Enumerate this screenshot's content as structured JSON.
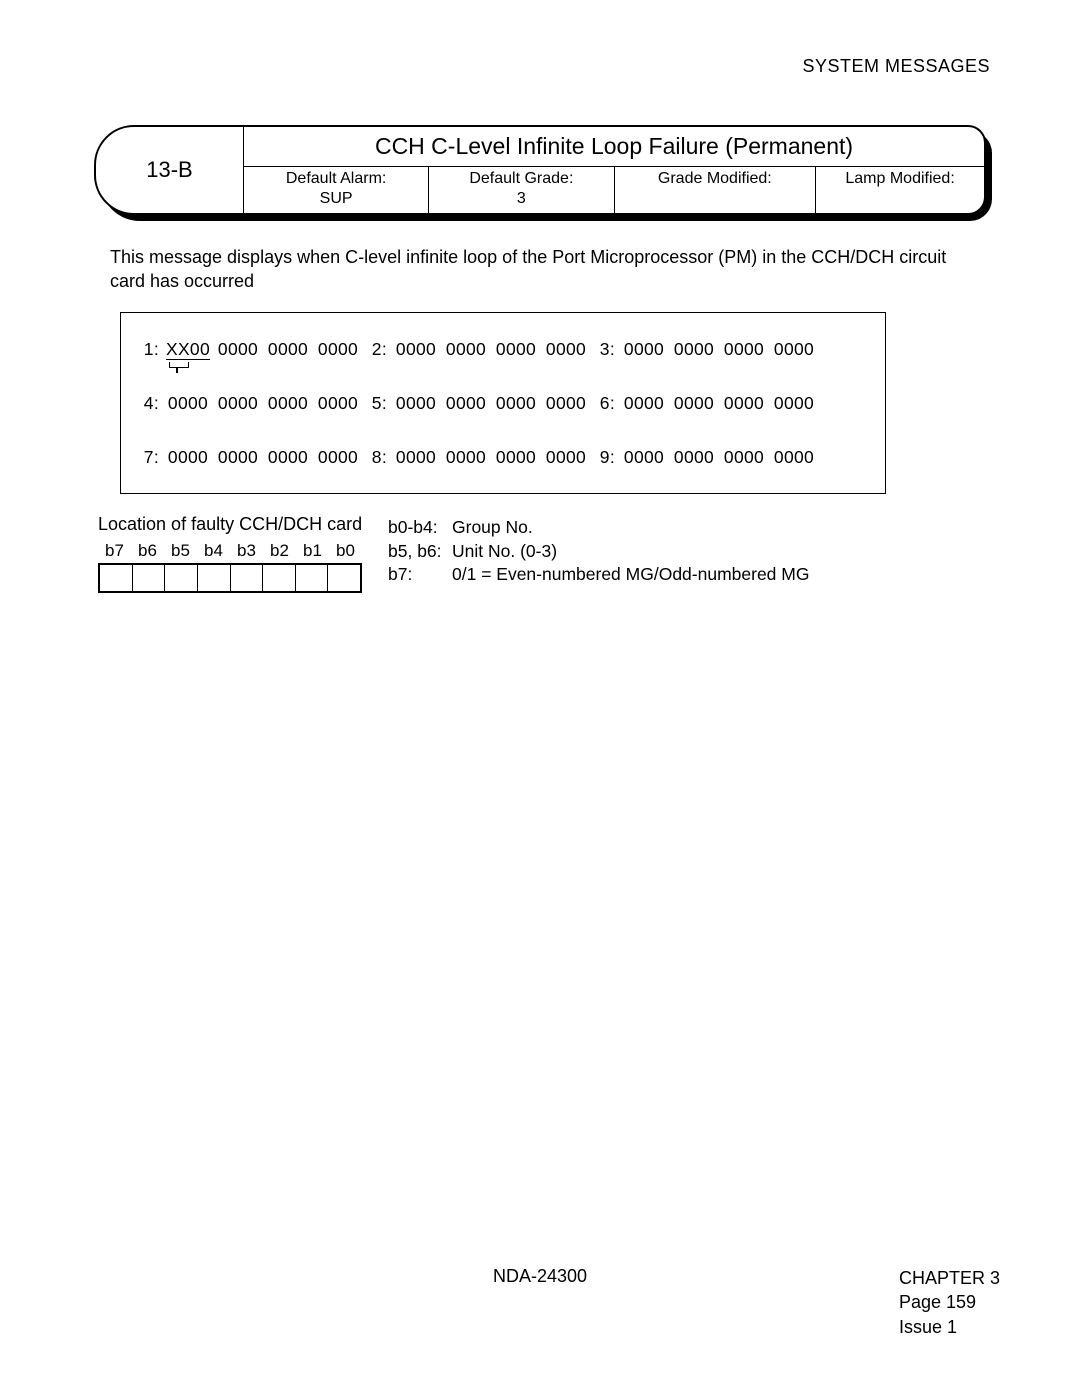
{
  "header": {
    "section": "SYSTEM MESSAGES"
  },
  "titlebox": {
    "code": "13-B",
    "title": "CCH C-Level Infinite Loop Failure (Permanent)",
    "cells": [
      {
        "label": "Default Alarm:",
        "value": "SUP"
      },
      {
        "label": "Default Grade:",
        "value": "3"
      },
      {
        "label": "Grade Modified:",
        "value": ""
      },
      {
        "label": "Lamp Modified:",
        "value": ""
      }
    ]
  },
  "description": "This message displays when C-level infinite loop of the Port Microprocessor (PM) in the CCH/DCH circuit card has occurred",
  "data_block": {
    "rows": [
      [
        {
          "n": "1:",
          "q": [
            "XX00",
            "0000",
            "0000",
            "0000"
          ],
          "first_underline": true,
          "first_bracket": true
        },
        {
          "n": "2:",
          "q": [
            "0000",
            "0000",
            "0000",
            "0000"
          ]
        },
        {
          "n": "3:",
          "q": [
            "0000",
            "0000",
            "0000",
            "0000"
          ]
        }
      ],
      [
        {
          "n": "4:",
          "q": [
            "0000",
            "0000",
            "0000",
            "0000"
          ]
        },
        {
          "n": "5:",
          "q": [
            "0000",
            "0000",
            "0000",
            "0000"
          ]
        },
        {
          "n": "6:",
          "q": [
            "0000",
            "0000",
            "0000",
            "0000"
          ]
        }
      ],
      [
        {
          "n": "7:",
          "q": [
            "0000",
            "0000",
            "0000",
            "0000"
          ]
        },
        {
          "n": "8:",
          "q": [
            "0000",
            "0000",
            "0000",
            "0000"
          ]
        },
        {
          "n": "9:",
          "q": [
            "0000",
            "0000",
            "0000",
            "0000"
          ]
        }
      ]
    ]
  },
  "location": {
    "title": "Location of faulty CCH/DCH card",
    "bits": [
      "b7",
      "b6",
      "b5",
      "b4",
      "b3",
      "b2",
      "b1",
      "b0"
    ],
    "legend": [
      {
        "k": "b0-b4:",
        "v": "Group No."
      },
      {
        "k": "b5, b6:",
        "v": "Unit No. (0-3)"
      },
      {
        "k": "b7:",
        "v": "0/1 = Even-numbered MG/Odd-numbered MG"
      }
    ]
  },
  "footer": {
    "doc": "NDA-24300",
    "chapter": "CHAPTER 3",
    "page": "Page 159",
    "issue": "Issue 1"
  }
}
